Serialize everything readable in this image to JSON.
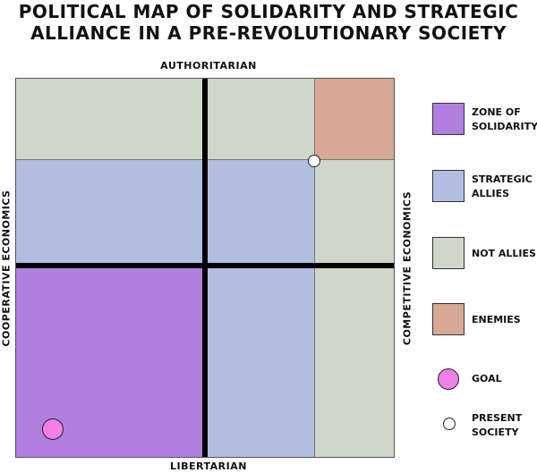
{
  "title": {
    "line1": "POLITICAL MAP OF SOLIDARITY AND STRATEGIC",
    "line2": "ALLIANCE IN A PRE-REVOLUTIONARY SOCIETY"
  },
  "axes": {
    "top": "AUTHORITARIAN",
    "bottom": "LIBERTARIAN",
    "left": "COOPERATIVE  ECONOMICS",
    "right": "COMPETITIVE  ECONOMICS"
  },
  "colors": {
    "solidarity": "#b07fe0",
    "allies": "#b1bee2",
    "not_allies": "#cdd8c9",
    "enemies": "#d5a993",
    "goal": "#f37fe9",
    "present": "#ffffff"
  },
  "legend": [
    {
      "key": "solidarity",
      "label": "ZONE OF\nSOLIDARITY"
    },
    {
      "key": "allies",
      "label": "STRATEGIC\nALLIES"
    },
    {
      "key": "not_allies",
      "label": "NOT ALLIES"
    },
    {
      "key": "enemies",
      "label": "ENEMIES"
    },
    {
      "key": "goal",
      "label": "GOAL"
    },
    {
      "key": "present",
      "label": "PRESENT\nSOCIETY"
    }
  ]
}
